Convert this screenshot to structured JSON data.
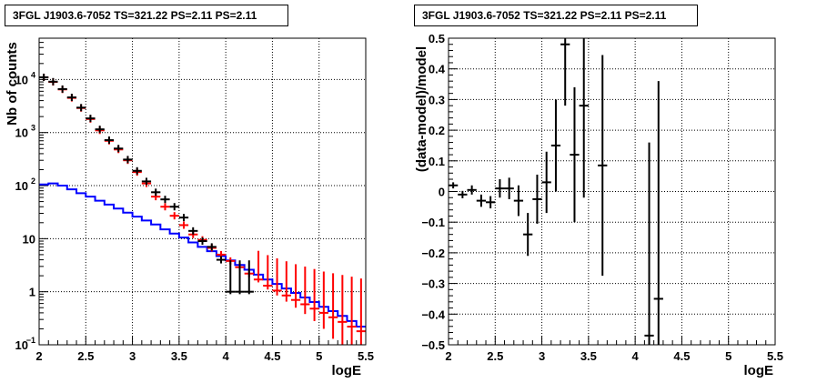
{
  "chart_data": [
    {
      "type": "line",
      "title": "3FGL J1903.6-7052 TS=321.22 PS=2.11 PS=2.11",
      "xlabel": "logE",
      "ylabel": "Nb of counts",
      "xlim": [
        2,
        5.5
      ],
      "ylim": [
        0.1,
        60000
      ],
      "yscale": "log",
      "grid": true,
      "x_ticks": [
        "2",
        "2.5",
        "3",
        "3.5",
        "4",
        "4.5",
        "5",
        "5.5"
      ],
      "y_ticks": [
        {
          "value": 0.1,
          "label": "10",
          "sup": "−1"
        },
        {
          "value": 1,
          "label": "1",
          "sup": ""
        },
        {
          "value": 10,
          "label": "10",
          "sup": ""
        },
        {
          "value": 100,
          "label": "10",
          "sup": "2"
        },
        {
          "value": 1000,
          "label": "10",
          "sup": "3"
        },
        {
          "value": 10000,
          "label": "10",
          "sup": "4"
        }
      ],
      "bin_edges": [
        2.0,
        2.1,
        2.2,
        2.3,
        2.4,
        2.5,
        2.6,
        2.7,
        2.8,
        2.9,
        3.0,
        3.1,
        3.2,
        3.3,
        3.4,
        3.5,
        3.6,
        3.7,
        3.8,
        3.9,
        4.0,
        4.1,
        4.2,
        4.3,
        4.4,
        4.5,
        4.6,
        4.7,
        4.8,
        4.9,
        5.0,
        5.1,
        5.2,
        5.3,
        5.4,
        5.5
      ],
      "series": [
        {
          "kind": "histogram",
          "color": "#0000ff",
          "values": [
            105,
            110,
            100,
            85,
            72,
            62,
            52,
            44,
            37,
            31,
            26,
            22,
            18.5,
            15,
            12.5,
            10.5,
            8.5,
            7,
            5.8,
            4.7,
            3.9,
            3.2,
            2.6,
            2.1,
            1.7,
            1.4,
            1.15,
            0.95,
            0.78,
            0.64,
            0.52,
            0.43,
            0.35,
            0.28,
            0.22
          ]
        },
        {
          "kind": "points",
          "color": "#ff0000",
          "x": [
            2.05,
            2.15,
            2.25,
            2.35,
            2.45,
            2.55,
            2.65,
            2.75,
            2.85,
            2.95,
            3.05,
            3.15,
            3.25,
            3.35,
            3.45,
            3.55,
            3.65,
            3.75,
            3.85,
            3.95,
            4.05,
            4.15,
            4.25,
            4.35,
            4.45,
            4.55,
            4.65,
            4.75,
            4.85,
            4.95,
            5.05,
            5.15,
            5.25,
            5.35,
            5.45
          ],
          "y": [
            11000,
            9000,
            6500,
            4500,
            2900,
            1800,
            1100,
            700,
            480,
            300,
            180,
            110,
            62,
            40,
            27,
            18,
            12,
            9.5,
            6.7,
            5,
            3.8,
            2.9,
            2.2,
            1.7,
            1.3,
            1.05,
            0.85,
            0.7,
            0.58,
            0.48,
            0.4,
            0.33,
            0.27,
            0.22,
            0.18
          ],
          "yerr_low": [
            null,
            null,
            null,
            null,
            null,
            null,
            null,
            null,
            null,
            null,
            null,
            null,
            null,
            null,
            null,
            null,
            null,
            null,
            null,
            null,
            null,
            null,
            null,
            0.2,
            0.2,
            0.2,
            0.2,
            0.2,
            0.2,
            0.2,
            0.2,
            0.2,
            0.2,
            0.2,
            0.2
          ],
          "yerr_high": [
            null,
            null,
            null,
            null,
            null,
            null,
            null,
            null,
            null,
            null,
            null,
            null,
            null,
            null,
            null,
            null,
            null,
            null,
            null,
            null,
            null,
            null,
            null,
            4.2,
            3.6,
            3.2,
            2.9,
            2.6,
            2.4,
            2.2,
            2.0,
            1.9,
            1.8,
            1.7,
            1.6
          ]
        },
        {
          "kind": "points",
          "color": "#000000",
          "x": [
            2.05,
            2.15,
            2.25,
            2.35,
            2.45,
            2.55,
            2.65,
            2.75,
            2.85,
            2.95,
            3.05,
            3.15,
            3.25,
            3.35,
            3.45,
            3.55,
            3.65,
            3.75,
            3.85,
            3.95,
            4.05,
            4.15,
            4.25
          ],
          "y": [
            11000,
            9100,
            6600,
            4600,
            2950,
            1850,
            1150,
            720,
            500,
            310,
            190,
            120,
            75,
            55,
            40,
            25,
            14,
            9,
            7,
            4,
            1,
            1,
            1
          ],
          "yerr_low": [
            null,
            null,
            null,
            null,
            null,
            null,
            null,
            null,
            null,
            null,
            null,
            null,
            null,
            null,
            null,
            null,
            null,
            null,
            null,
            null,
            0.1,
            0.1,
            0.1
          ],
          "yerr_high": [
            null,
            null,
            null,
            null,
            null,
            null,
            null,
            null,
            null,
            null,
            null,
            null,
            null,
            null,
            null,
            null,
            null,
            null,
            null,
            null,
            2.9,
            2.9,
            2.9
          ]
        }
      ]
    },
    {
      "type": "scatter",
      "title": "3FGL J1903.6-7052 TS=321.22 PS=2.11 PS=2.11",
      "xlabel": "logE",
      "ylabel": "(data-model)/model",
      "xlim": [
        2,
        5.5
      ],
      "ylim": [
        -0.5,
        0.5
      ],
      "grid": true,
      "x_ticks": [
        "2",
        "2.5",
        "3",
        "3.5",
        "4",
        "4.5",
        "5",
        "5.5"
      ],
      "y_ticks": [
        "−0.5",
        "−0.4",
        "−0.3",
        "−0.2",
        "−0.1",
        "0",
        "0.1",
        "0.2",
        "0.3",
        "0.4",
        "0.5"
      ],
      "series": [
        {
          "color": "#000000",
          "x": [
            2.05,
            2.15,
            2.25,
            2.35,
            2.45,
            2.55,
            2.65,
            2.75,
            2.85,
            2.95,
            3.05,
            3.15,
            3.25,
            3.35,
            3.45,
            3.65,
            4.15,
            4.25
          ],
          "y": [
            0.02,
            -0.01,
            0.005,
            -0.03,
            -0.035,
            0.01,
            0.01,
            -0.03,
            -0.14,
            -0.025,
            0.03,
            0.15,
            0.48,
            0.12,
            0.28,
            0.085,
            -0.47,
            -0.35
          ],
          "yerr": [
            0.01,
            0.012,
            0.015,
            0.02,
            0.02,
            0.03,
            0.035,
            0.05,
            0.07,
            0.08,
            0.1,
            0.15,
            0.2,
            0.22,
            0.3,
            0.36,
            0.63,
            0.71
          ]
        }
      ]
    }
  ]
}
